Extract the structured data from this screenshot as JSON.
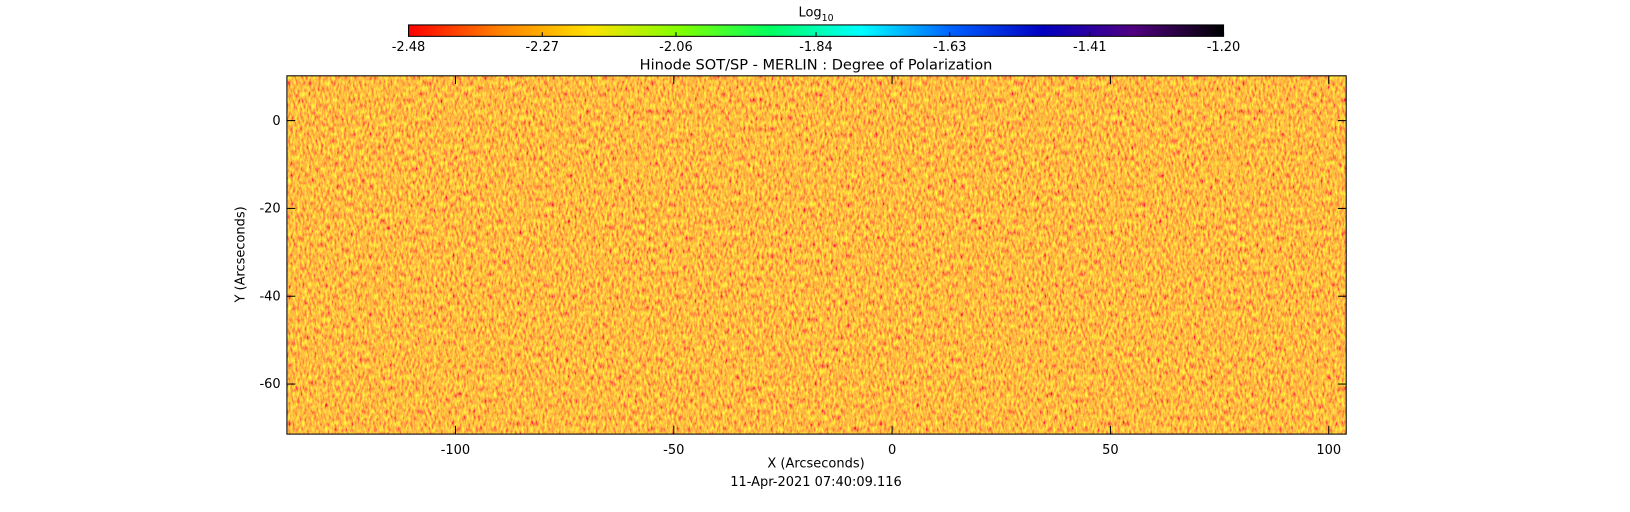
{
  "chart_data": {
    "type": "image",
    "title": "Hinode SOT/SP - MERLIN : Degree of Polarization",
    "x_label": "X (Arcseconds)",
    "y_label": "Y (Arcseconds)",
    "date": "11-Apr-2021 07:40:09.116",
    "xlim": [
      -138.6,
      104
    ],
    "ylim": [
      -71.4,
      10.2
    ],
    "xticks": [
      -100,
      -50,
      0,
      50,
      100
    ],
    "yticks": [
      0,
      -20,
      -40,
      -60
    ],
    "colorbar": {
      "label": "Log",
      "label_sub": "10",
      "lim": [
        -2.48,
        -1.2
      ],
      "ticks": [
        -2.48,
        -2.27,
        -2.06,
        -1.84,
        -1.63,
        -1.41,
        {
          "value": -1.2,
          "label": "-1.20"
        }
      ],
      "colors": [
        "#ff0000",
        "#ff8000",
        "#ffe000",
        "#80ff00",
        "#00ff60",
        "#00ffff",
        "#0060ff",
        "#0000c0",
        "#500080",
        "#000000"
      ]
    }
  }
}
